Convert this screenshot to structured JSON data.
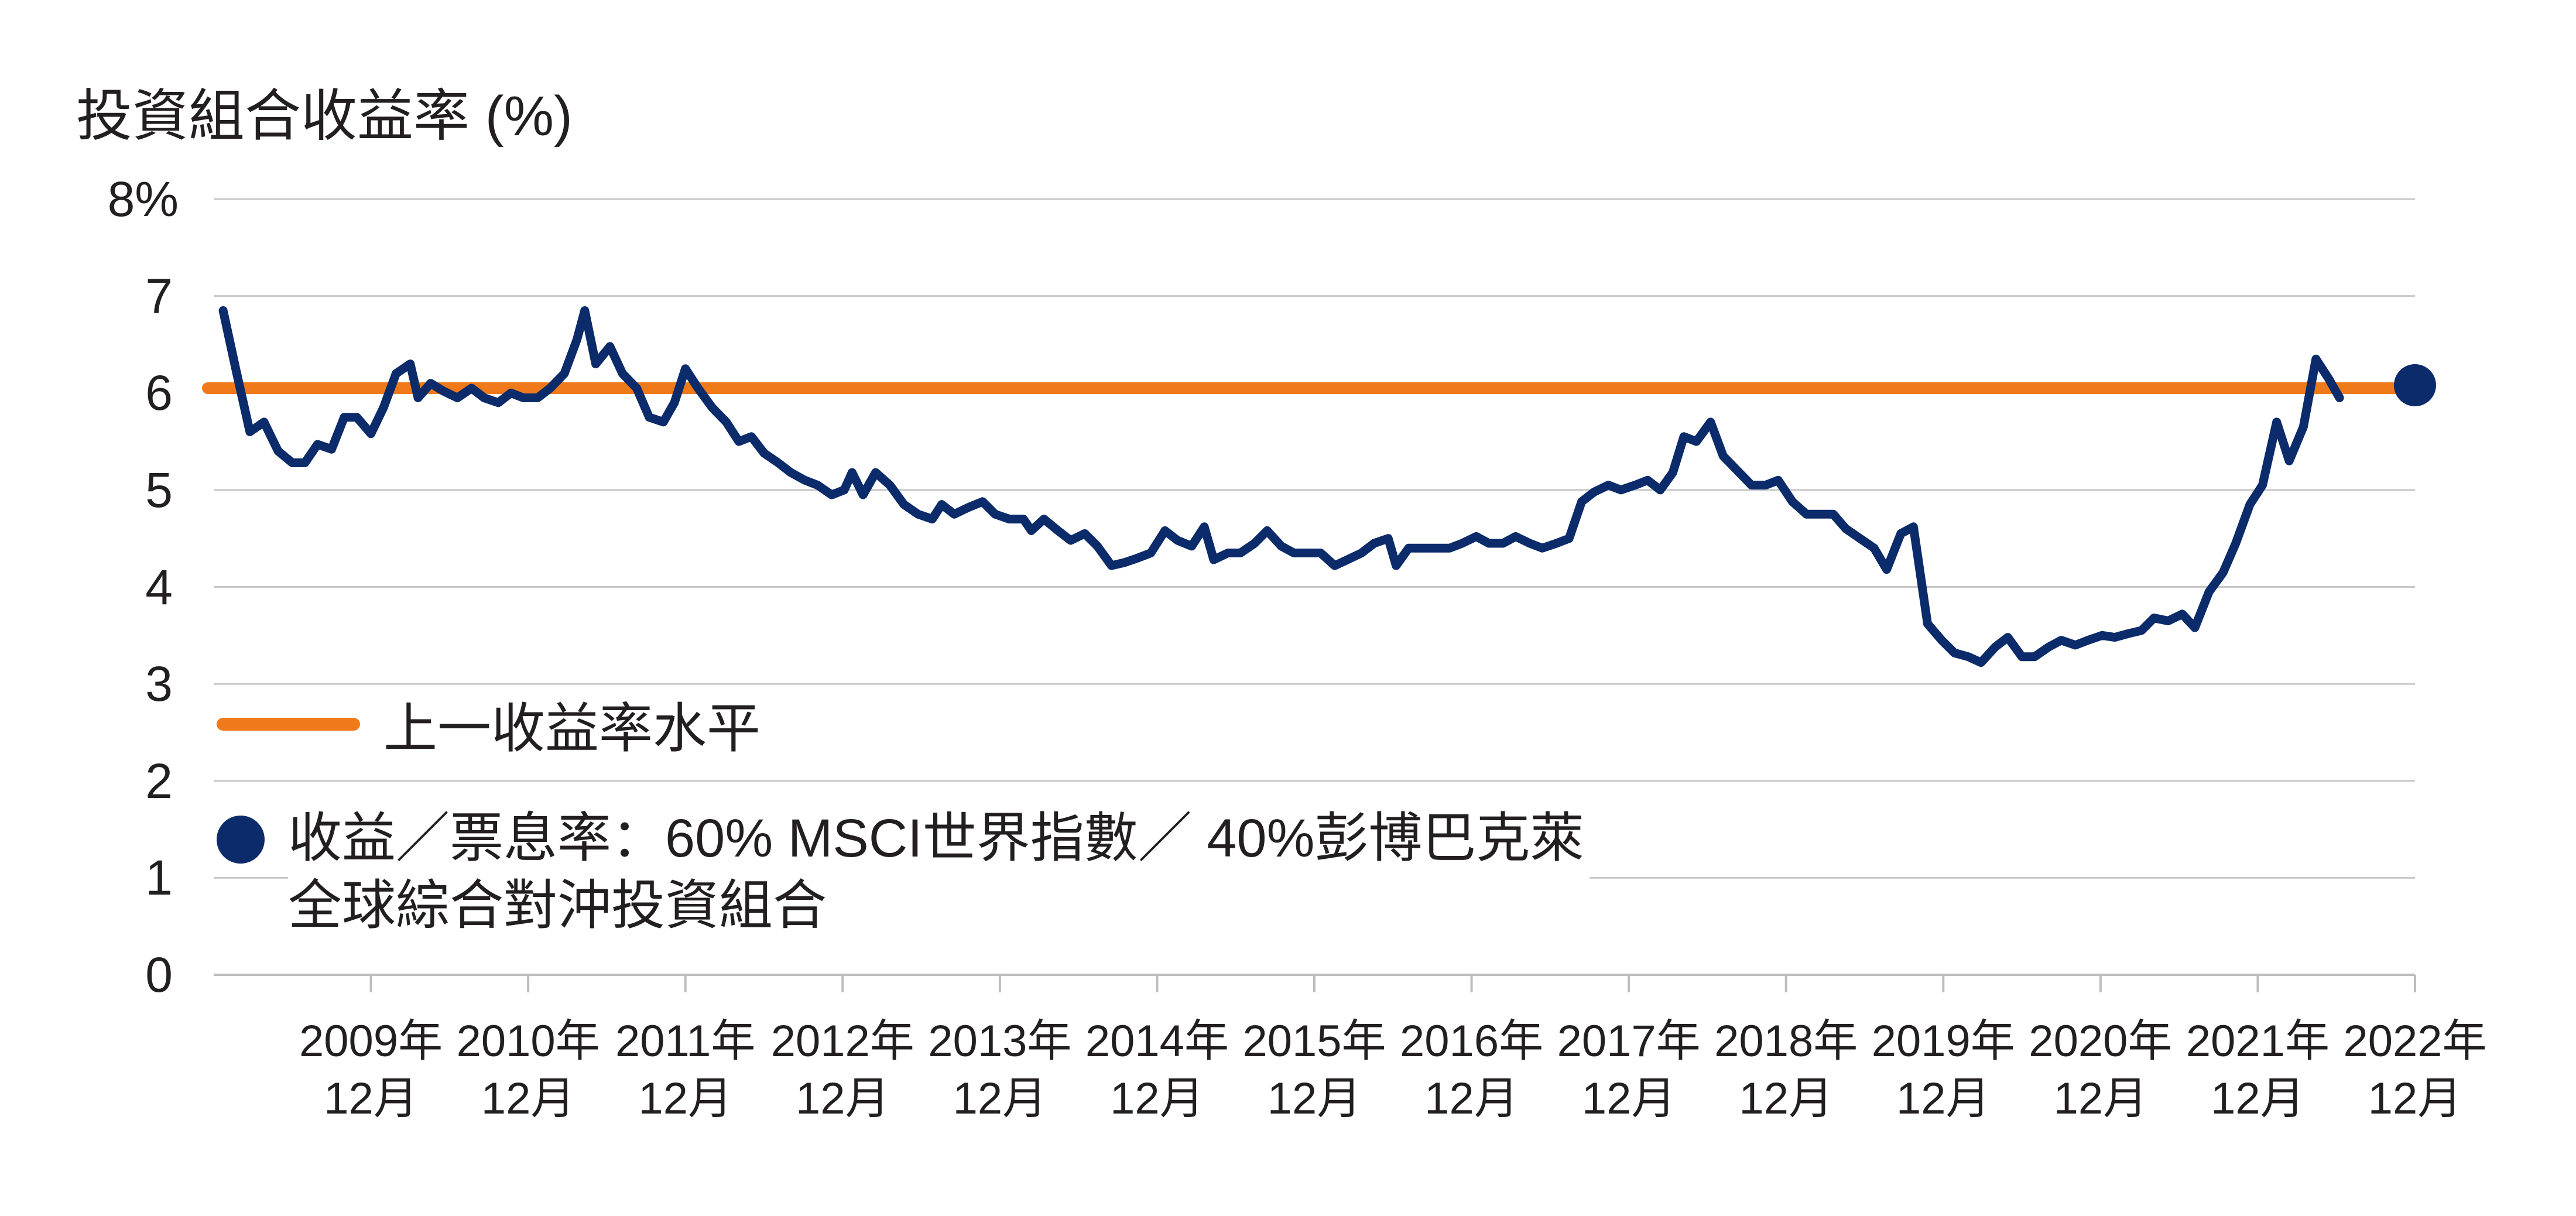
{
  "chart_data": {
    "type": "line",
    "ylabel": "投資組合收益率 (%)",
    "ylim": [
      0,
      8
    ],
    "yticks": [
      "0",
      "1",
      "2",
      "3",
      "4",
      "5",
      "6",
      "7",
      "8%"
    ],
    "x_range": [
      2008.92,
      2022.92
    ],
    "xticks": [
      {
        "top": "2009年",
        "bottom": "12月",
        "x": 2009.92
      },
      {
        "top": "2010年",
        "bottom": "12月",
        "x": 2010.92
      },
      {
        "top": "2011年",
        "bottom": "12月",
        "x": 2011.92
      },
      {
        "top": "2012年",
        "bottom": "12月",
        "x": 2012.92
      },
      {
        "top": "2013年",
        "bottom": "12月",
        "x": 2013.92
      },
      {
        "top": "2014年",
        "bottom": "12月",
        "x": 2014.92
      },
      {
        "top": "2015年",
        "bottom": "12月",
        "x": 2015.92
      },
      {
        "top": "2016年",
        "bottom": "12月",
        "x": 2016.92
      },
      {
        "top": "2017年",
        "bottom": "12月",
        "x": 2017.92
      },
      {
        "top": "2018年",
        "bottom": "12月",
        "x": 2018.92
      },
      {
        "top": "2019年",
        "bottom": "12月",
        "x": 2019.92
      },
      {
        "top": "2020年",
        "bottom": "12月",
        "x": 2020.92
      },
      {
        "top": "2021年",
        "bottom": "12月",
        "x": 2021.92
      },
      {
        "top": "2022年",
        "bottom": "12月",
        "x": 2022.92
      }
    ],
    "grid": true,
    "reference_line": {
      "name": "上一收益率水平",
      "value": 6.05,
      "color": "#f07a1a"
    },
    "series": [
      {
        "name": "收益／票息率：60% MSCI世界指數／ 40%彭博巴克萊全球綜合對沖投資組合",
        "color": "#0b2b6b",
        "points": [
          [
            2008.98,
            6.85
          ],
          [
            2009.06,
            6.25
          ],
          [
            2009.15,
            5.6
          ],
          [
            2009.24,
            5.7
          ],
          [
            2009.33,
            5.4
          ],
          [
            2009.42,
            5.28
          ],
          [
            2009.5,
            5.28
          ],
          [
            2009.58,
            5.47
          ],
          [
            2009.67,
            5.42
          ],
          [
            2009.75,
            5.75
          ],
          [
            2009.83,
            5.75
          ],
          [
            2009.92,
            5.58
          ],
          [
            2010.0,
            5.85
          ],
          [
            2010.08,
            6.2
          ],
          [
            2010.17,
            6.3
          ],
          [
            2010.22,
            5.95
          ],
          [
            2010.3,
            6.1
          ],
          [
            2010.38,
            6.02
          ],
          [
            2010.47,
            5.95
          ],
          [
            2010.56,
            6.05
          ],
          [
            2010.64,
            5.95
          ],
          [
            2010.73,
            5.9
          ],
          [
            2010.81,
            6.0
          ],
          [
            2010.89,
            5.95
          ],
          [
            2010.98,
            5.95
          ],
          [
            2011.06,
            6.05
          ],
          [
            2011.15,
            6.2
          ],
          [
            2011.23,
            6.55
          ],
          [
            2011.28,
            6.85
          ],
          [
            2011.35,
            6.3
          ],
          [
            2011.44,
            6.48
          ],
          [
            2011.52,
            6.2
          ],
          [
            2011.61,
            6.05
          ],
          [
            2011.69,
            5.75
          ],
          [
            2011.78,
            5.7
          ],
          [
            2011.85,
            5.9
          ],
          [
            2011.92,
            6.25
          ],
          [
            2012.0,
            6.05
          ],
          [
            2012.09,
            5.85
          ],
          [
            2012.18,
            5.7
          ],
          [
            2012.26,
            5.5
          ],
          [
            2012.34,
            5.55
          ],
          [
            2012.42,
            5.38
          ],
          [
            2012.51,
            5.28
          ],
          [
            2012.59,
            5.18
          ],
          [
            2012.68,
            5.1
          ],
          [
            2012.76,
            5.05
          ],
          [
            2012.85,
            4.95
          ],
          [
            2012.93,
            5.0
          ],
          [
            2012.98,
            5.18
          ],
          [
            2013.05,
            4.95
          ],
          [
            2013.13,
            5.18
          ],
          [
            2013.22,
            5.05
          ],
          [
            2013.31,
            4.85
          ],
          [
            2013.4,
            4.75
          ],
          [
            2013.49,
            4.7
          ],
          [
            2013.55,
            4.85
          ],
          [
            2013.63,
            4.75
          ],
          [
            2013.72,
            4.82
          ],
          [
            2013.81,
            4.88
          ],
          [
            2013.89,
            4.75
          ],
          [
            2013.98,
            4.7
          ],
          [
            2014.07,
            4.7
          ],
          [
            2014.12,
            4.58
          ],
          [
            2014.2,
            4.7
          ],
          [
            2014.29,
            4.58
          ],
          [
            2014.37,
            4.48
          ],
          [
            2014.46,
            4.55
          ],
          [
            2014.54,
            4.42
          ],
          [
            2014.63,
            4.22
          ],
          [
            2014.71,
            4.25
          ],
          [
            2014.8,
            4.3
          ],
          [
            2014.88,
            4.35
          ],
          [
            2014.97,
            4.58
          ],
          [
            2015.05,
            4.48
          ],
          [
            2015.14,
            4.42
          ],
          [
            2015.22,
            4.62
          ],
          [
            2015.28,
            4.28
          ],
          [
            2015.37,
            4.35
          ],
          [
            2015.45,
            4.35
          ],
          [
            2015.54,
            4.45
          ],
          [
            2015.62,
            4.58
          ],
          [
            2015.71,
            4.42
          ],
          [
            2015.79,
            4.35
          ],
          [
            2015.88,
            4.35
          ],
          [
            2015.96,
            4.35
          ],
          [
            2016.05,
            4.22
          ],
          [
            2016.13,
            4.28
          ],
          [
            2016.22,
            4.35
          ],
          [
            2016.3,
            4.45
          ],
          [
            2016.39,
            4.5
          ],
          [
            2016.44,
            4.22
          ],
          [
            2016.52,
            4.4
          ],
          [
            2016.61,
            4.4
          ],
          [
            2016.69,
            4.4
          ],
          [
            2016.78,
            4.4
          ],
          [
            2016.86,
            4.45
          ],
          [
            2016.95,
            4.52
          ],
          [
            2017.03,
            4.45
          ],
          [
            2017.12,
            4.45
          ],
          [
            2017.2,
            4.52
          ],
          [
            2017.29,
            4.45
          ],
          [
            2017.37,
            4.4
          ],
          [
            2017.46,
            4.45
          ],
          [
            2017.54,
            4.5
          ],
          [
            2017.62,
            4.88
          ],
          [
            2017.7,
            4.98
          ],
          [
            2017.79,
            5.05
          ],
          [
            2017.87,
            5.0
          ],
          [
            2017.96,
            5.05
          ],
          [
            2018.04,
            5.1
          ],
          [
            2018.12,
            5.0
          ],
          [
            2018.2,
            5.18
          ],
          [
            2018.27,
            5.55
          ],
          [
            2018.35,
            5.5
          ],
          [
            2018.44,
            5.7
          ],
          [
            2018.52,
            5.35
          ],
          [
            2018.61,
            5.2
          ],
          [
            2018.7,
            5.05
          ],
          [
            2018.79,
            5.05
          ],
          [
            2018.87,
            5.1
          ],
          [
            2018.96,
            4.88
          ],
          [
            2019.05,
            4.75
          ],
          [
            2019.13,
            4.75
          ],
          [
            2019.22,
            4.75
          ],
          [
            2019.3,
            4.6
          ],
          [
            2019.39,
            4.5
          ],
          [
            2019.48,
            4.4
          ],
          [
            2019.56,
            4.18
          ],
          [
            2019.65,
            4.55
          ],
          [
            2019.73,
            4.62
          ],
          [
            2019.82,
            3.62
          ],
          [
            2019.91,
            3.45
          ],
          [
            2019.99,
            3.32
          ],
          [
            2020.08,
            3.28
          ],
          [
            2020.16,
            3.22
          ],
          [
            2020.25,
            3.38
          ],
          [
            2020.33,
            3.48
          ],
          [
            2020.42,
            3.28
          ],
          [
            2020.5,
            3.28
          ],
          [
            2020.59,
            3.38
          ],
          [
            2020.67,
            3.45
          ],
          [
            2020.76,
            3.4
          ],
          [
            2020.84,
            3.45
          ],
          [
            2020.93,
            3.5
          ],
          [
            2021.01,
            3.48
          ],
          [
            2021.1,
            3.52
          ],
          [
            2021.18,
            3.55
          ],
          [
            2021.26,
            3.68
          ],
          [
            2021.35,
            3.65
          ],
          [
            2021.44,
            3.72
          ],
          [
            2021.52,
            3.58
          ],
          [
            2021.61,
            3.95
          ],
          [
            2021.7,
            4.15
          ],
          [
            2021.78,
            4.45
          ],
          [
            2021.87,
            4.85
          ],
          [
            2021.95,
            5.05
          ],
          [
            2022.04,
            5.7
          ],
          [
            2022.12,
            5.3
          ],
          [
            2022.21,
            5.65
          ],
          [
            2022.29,
            6.35
          ],
          [
            2022.37,
            6.15
          ],
          [
            2022.44,
            5.95
          ]
        ]
      }
    ],
    "last_point": {
      "x": 2022.92,
      "y": 6.08
    },
    "legend": [
      {
        "label": "上一收益率水平"
      },
      {
        "label_line1": "收益／票息率：60% MSCI世界指數／ 40%彭博巴克萊",
        "label_line2": "全球綜合對沖投資組合"
      }
    ]
  }
}
